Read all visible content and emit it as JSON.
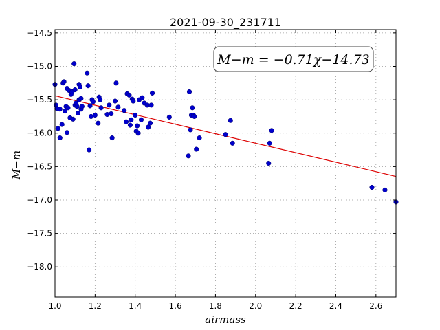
{
  "chart_data": {
    "type": "scatter",
    "title": "2021-09-30_231711",
    "xlabel": "airmass",
    "ylabel": "M−m",
    "xlim": [
      1.0,
      2.7
    ],
    "ylim": [
      -18.45,
      -14.45
    ],
    "y_inverted": true,
    "grid": true,
    "x_ticks": [
      "1.0",
      "1.2",
      "1.4",
      "1.6",
      "1.8",
      "2.0",
      "2.2",
      "2.4",
      "2.6"
    ],
    "y_ticks": [
      "−14.5",
      "−15.0",
      "−15.5",
      "−16.0",
      "−16.5",
      "−17.0",
      "−17.5",
      "−18.0"
    ],
    "annotation": "M−m = −0.71χ−14.73",
    "point_color": "#0000cc",
    "fit_color": "#dd0000",
    "fit": {
      "slope": -0.71,
      "intercept": -14.73
    },
    "points": [
      [
        1.0,
        -15.27
      ],
      [
        1.005,
        -15.58
      ],
      [
        1.01,
        -15.63
      ],
      [
        1.015,
        -15.93
      ],
      [
        1.025,
        -16.07
      ],
      [
        1.025,
        -15.64
      ],
      [
        1.035,
        -15.87
      ],
      [
        1.04,
        -15.25
      ],
      [
        1.045,
        -15.23
      ],
      [
        1.05,
        -15.67
      ],
      [
        1.055,
        -15.6
      ],
      [
        1.06,
        -15.33
      ],
      [
        1.06,
        -15.99
      ],
      [
        1.065,
        -15.62
      ],
      [
        1.07,
        -15.36
      ],
      [
        1.075,
        -15.77
      ],
      [
        1.08,
        -15.42
      ],
      [
        1.085,
        -15.38
      ],
      [
        1.09,
        -15.79
      ],
      [
        1.095,
        -14.96
      ],
      [
        1.1,
        -15.35
      ],
      [
        1.1,
        -15.58
      ],
      [
        1.105,
        -15.55
      ],
      [
        1.11,
        -15.6
      ],
      [
        1.115,
        -15.7
      ],
      [
        1.12,
        -15.27
      ],
      [
        1.12,
        -15.5
      ],
      [
        1.125,
        -15.31
      ],
      [
        1.13,
        -15.48
      ],
      [
        1.13,
        -15.64
      ],
      [
        1.135,
        -15.6
      ],
      [
        1.16,
        -15.1
      ],
      [
        1.165,
        -15.29
      ],
      [
        1.17,
        -16.25
      ],
      [
        1.175,
        -15.59
      ],
      [
        1.18,
        -15.75
      ],
      [
        1.185,
        -15.5
      ],
      [
        1.19,
        -15.53
      ],
      [
        1.2,
        -15.73
      ],
      [
        1.215,
        -15.85
      ],
      [
        1.22,
        -15.46
      ],
      [
        1.225,
        -15.5
      ],
      [
        1.23,
        -15.62
      ],
      [
        1.26,
        -15.72
      ],
      [
        1.27,
        -15.58
      ],
      [
        1.28,
        -15.71
      ],
      [
        1.285,
        -16.07
      ],
      [
        1.3,
        -15.52
      ],
      [
        1.305,
        -15.25
      ],
      [
        1.315,
        -15.61
      ],
      [
        1.345,
        -15.66
      ],
      [
        1.355,
        -15.83
      ],
      [
        1.36,
        -15.41
      ],
      [
        1.37,
        -15.43
      ],
      [
        1.375,
        -15.88
      ],
      [
        1.38,
        -15.8
      ],
      [
        1.385,
        -15.49
      ],
      [
        1.39,
        -15.52
      ],
      [
        1.4,
        -15.73
      ],
      [
        1.405,
        -15.97
      ],
      [
        1.41,
        -15.89
      ],
      [
        1.415,
        -16.0
      ],
      [
        1.42,
        -15.5
      ],
      [
        1.43,
        -15.8
      ],
      [
        1.435,
        -15.47
      ],
      [
        1.445,
        -15.55
      ],
      [
        1.46,
        -15.58
      ],
      [
        1.465,
        -15.91
      ],
      [
        1.475,
        -15.85
      ],
      [
        1.48,
        -15.58
      ],
      [
        1.485,
        -15.4
      ],
      [
        1.57,
        -15.76
      ],
      [
        1.665,
        -16.34
      ],
      [
        1.67,
        -15.38
      ],
      [
        1.675,
        -15.95
      ],
      [
        1.68,
        -15.73
      ],
      [
        1.685,
        -15.62
      ],
      [
        1.69,
        -15.73
      ],
      [
        1.695,
        -15.75
      ],
      [
        1.705,
        -16.24
      ],
      [
        1.72,
        -16.07
      ],
      [
        1.85,
        -16.02
      ],
      [
        1.875,
        -15.81
      ],
      [
        1.885,
        -16.15
      ],
      [
        2.065,
        -16.45
      ],
      [
        2.07,
        -16.15
      ],
      [
        2.08,
        -15.96
      ],
      [
        2.58,
        -16.81
      ],
      [
        2.645,
        -16.85
      ],
      [
        2.7,
        -17.03
      ]
    ]
  }
}
